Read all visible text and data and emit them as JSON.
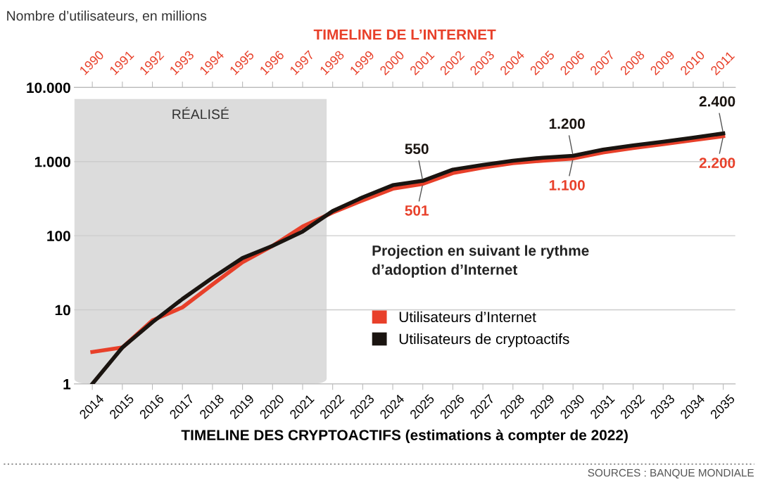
{
  "chart_data": {
    "type": "line",
    "ylabel": "Nombre d’utilisateurs, en millions",
    "x2label": "TIMELINE DE L’INTERNET",
    "xlabel": "TIMELINE DES CRYPTOACTIFS (estimations à compter de 2022)",
    "x": [
      2014,
      2015,
      2016,
      2017,
      2018,
      2019,
      2020,
      2021,
      2022,
      2023,
      2024,
      2025,
      2026,
      2027,
      2028,
      2029,
      2030,
      2031,
      2032,
      2033,
      2034,
      2035
    ],
    "series": [
      {
        "name": "Utilisateurs d’Internet",
        "color": "#e8402a",
        "values": [
          2.7,
          3.1,
          7.2,
          10.8,
          22,
          44,
          73,
          133,
          205,
          300,
          430,
          501,
          700,
          830,
          950,
          1030,
          1100,
          1330,
          1520,
          1720,
          1950,
          2200
        ]
      },
      {
        "name": "Utilisateurs de cryptoactifs",
        "color": "#1a1410",
        "values": [
          1,
          3.1,
          6.8,
          14,
          27,
          50,
          73,
          114,
          215,
          330,
          480,
          550,
          780,
          900,
          1030,
          1130,
          1200,
          1450,
          1650,
          1850,
          2100,
          2400
        ]
      }
    ],
    "log": "y",
    "xlim": [
      2013.4,
      2035.4
    ],
    "xticks": [
      2014,
      2015,
      2016,
      2017,
      2018,
      2019,
      2020,
      2021,
      2022,
      2023,
      2024,
      2025,
      2026,
      2027,
      2028,
      2029,
      2030,
      2031,
      2032,
      2033,
      2034,
      2035
    ],
    "x2lim": [
      1989.4,
      2011.4
    ],
    "x2ticks": [
      1990,
      1991,
      1992,
      1993,
      1994,
      1995,
      1996,
      1997,
      1998,
      1999,
      2000,
      2001,
      2002,
      2003,
      2004,
      2005,
      2006,
      2007,
      2008,
      2009,
      2010,
      2011
    ],
    "ylim": [
      1,
      10000
    ],
    "yticks": [
      {
        "value": 10000,
        "label": "10.000"
      },
      {
        "value": 1000,
        "label": "1.000"
      },
      100,
      10,
      1
    ],
    "grid": "y",
    "legend": "bottom",
    "line_style": "solid",
    "bands": [
      {
        "axis": "x",
        "from": 2013.4,
        "to": 2021.8,
        "label": "RÉALISÉ",
        "color": "#dcdcdc"
      }
    ],
    "annotations": [
      {
        "text": "550",
        "x": 2025,
        "y": 550
      },
      {
        "text": "501",
        "x": 2025,
        "y": 501
      },
      {
        "text": "1.200",
        "x": 2030,
        "y": 1200
      },
      {
        "text": "1.100",
        "x": 2030,
        "y": 1100
      },
      {
        "text": "2.400",
        "x": 2035,
        "y": 2400
      },
      {
        "text": "2.200",
        "x": 2035,
        "y": 2200
      },
      "Projection en suivant le rythme\nd’adoption d’Internet",
      "SOURCES : BANQUE MONDIALE"
    ]
  }
}
